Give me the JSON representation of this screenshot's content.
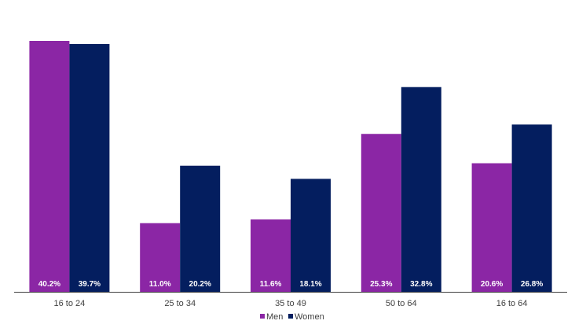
{
  "chart_data": {
    "type": "bar",
    "categories": [
      "16 to 24",
      "25 to 34",
      "35 to 49",
      "50 to 64",
      "16 to 64"
    ],
    "series": [
      {
        "name": "Men",
        "color": "#8b26a5",
        "values": [
          40.2,
          11.0,
          11.6,
          25.3,
          20.6
        ],
        "labels": [
          "40.2%",
          "11.0%",
          "11.6%",
          "25.3%",
          "20.6%"
        ]
      },
      {
        "name": "Women",
        "color": "#041e5f",
        "values": [
          39.7,
          20.2,
          18.1,
          32.8,
          26.8
        ],
        "labels": [
          "39.7%",
          "20.2%",
          "18.1%",
          "32.8%",
          "26.8%"
        ]
      }
    ],
    "title": "",
    "xlabel": "",
    "ylabel": "",
    "ylim": [
      0,
      40.2
    ],
    "grid": false,
    "legend": "bottom-center"
  }
}
